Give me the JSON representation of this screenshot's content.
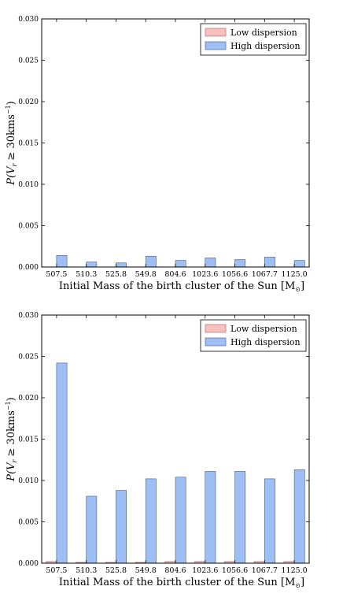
{
  "colors": {
    "low": "#f9c0c0",
    "low_edge": "#a06060",
    "high": "#9dbff5",
    "high_edge": "#4a5a7a",
    "axis": "#000000"
  },
  "chart_data": [
    {
      "type": "bar",
      "categories": [
        "507.5",
        "510.3",
        "525.8",
        "549.8",
        "804.6",
        "1023.6",
        "1056.6",
        "1067.7",
        "1125.0"
      ],
      "series": [
        {
          "name": "Low dispersion",
          "values": [
            0,
            0,
            0,
            0,
            0,
            0,
            0,
            0,
            0
          ]
        },
        {
          "name": "High dispersion",
          "values": [
            0.0014,
            0.0006,
            0.0005,
            0.0013,
            0.0008,
            0.0011,
            0.0009,
            0.0012,
            0.0008
          ]
        }
      ],
      "xlabel": "Initial Mass of the birth cluster of the Sun [M",
      "xlabel_sub": "⊙",
      "xlabel_end": "]",
      "ylabel": "P(V",
      "ylabel_sub": "r",
      "ylabel_rest": " ≥ 30kms",
      "ylabel_sup": "−1",
      "ylabel_end": ")",
      "ylim": [
        0,
        0.03
      ],
      "yticks": [
        "0.000",
        "0.005",
        "0.010",
        "0.015",
        "0.020",
        "0.025",
        "0.030"
      ],
      "legend": "top-right",
      "grid": false
    },
    {
      "type": "bar",
      "categories": [
        "507.5",
        "510.3",
        "525.8",
        "549.8",
        "804.6",
        "1023.6",
        "1056.6",
        "1067.7",
        "1125.0"
      ],
      "series": [
        {
          "name": "Low dispersion",
          "values": [
            0.0002,
            0.0001,
            0.0001,
            0.0001,
            0.0002,
            0.0002,
            0.0002,
            0.0002,
            0.0002
          ]
        },
        {
          "name": "High dispersion",
          "values": [
            0.0242,
            0.0081,
            0.0088,
            0.0102,
            0.0104,
            0.0111,
            0.0111,
            0.0102,
            0.0113
          ]
        }
      ],
      "xlabel": "Initial Mass of the birth cluster of the Sun [M",
      "xlabel_sub": "⊙",
      "xlabel_end": "]",
      "ylabel": "P(V",
      "ylabel_sub": "r",
      "ylabel_rest": " ≥ 30kms",
      "ylabel_sup": "−1",
      "ylabel_end": ")",
      "ylim": [
        0,
        0.03
      ],
      "yticks": [
        "0.000",
        "0.005",
        "0.010",
        "0.015",
        "0.020",
        "0.025",
        "0.030"
      ],
      "legend": "top-right",
      "grid": false
    }
  ]
}
